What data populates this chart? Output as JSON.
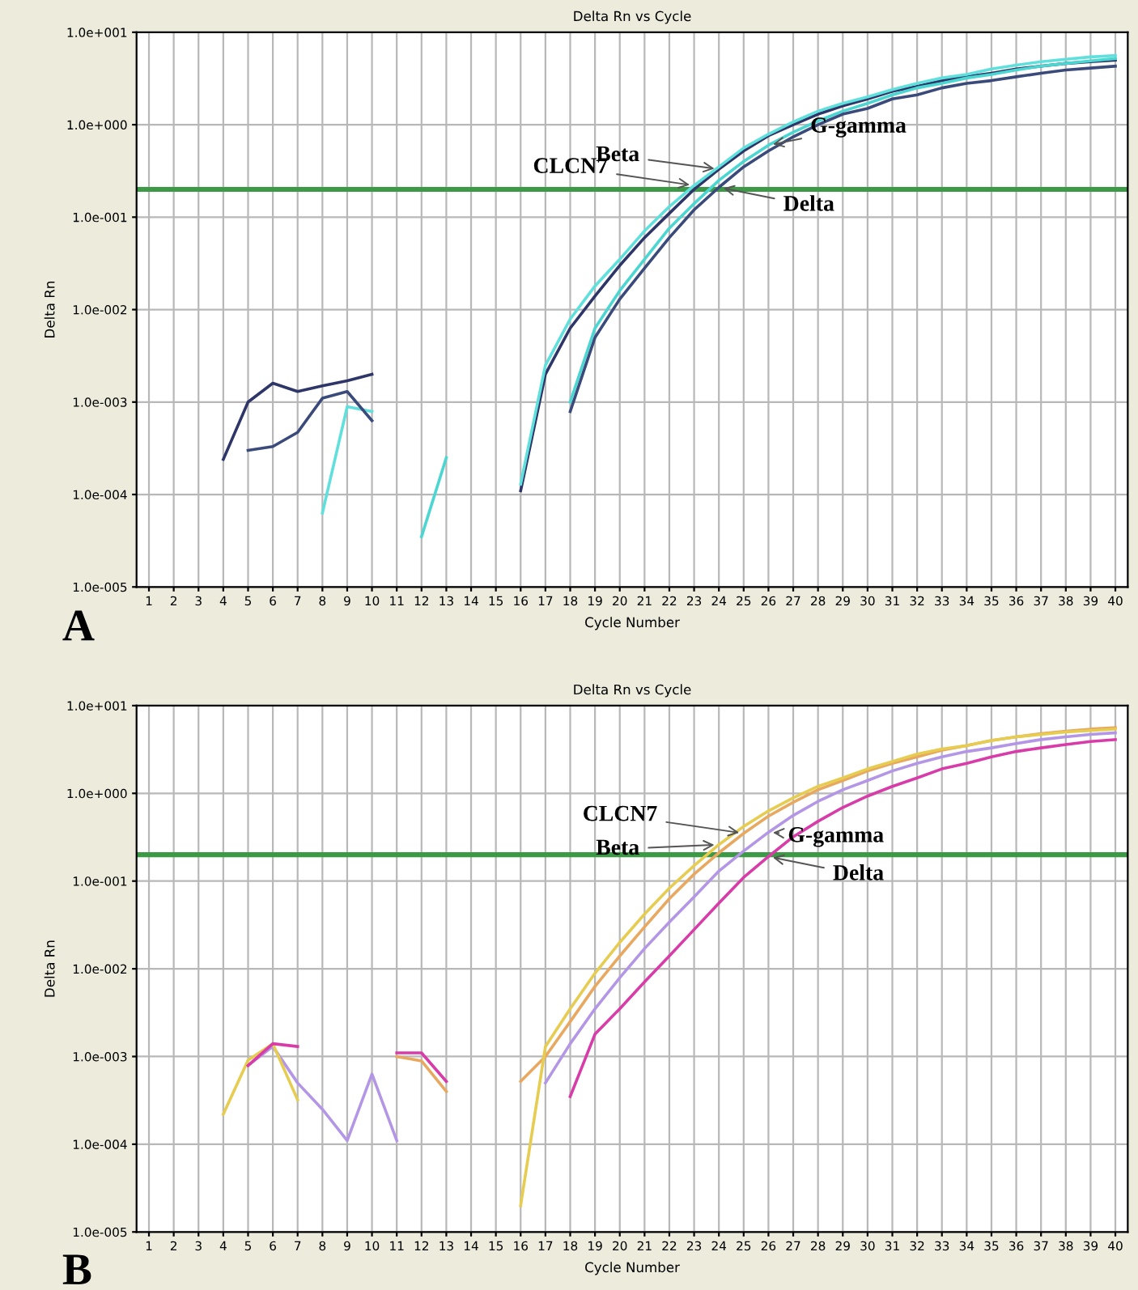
{
  "chart_data": [
    {
      "type": "line",
      "title": "Delta Rn vs Cycle",
      "xlabel": "Cycle Number",
      "ylabel": "Delta Rn",
      "log": "y",
      "grid": true,
      "legend": false,
      "marker": "none",
      "line_style": "solid",
      "annotations": [
        "A"
      ],
      "x": [
        4,
        5,
        6,
        7,
        8,
        9,
        10,
        11,
        12,
        13,
        14,
        15,
        16,
        17,
        18,
        19,
        20,
        21,
        22,
        23,
        24,
        25,
        26,
        27,
        28,
        29,
        30,
        31,
        32,
        33,
        34,
        35,
        36,
        37,
        38,
        39,
        40
      ],
      "xlim": [
        0.5,
        40.5
      ],
      "xticks": [
        1,
        2,
        3,
        4,
        5,
        6,
        7,
        8,
        9,
        10,
        11,
        12,
        13,
        14,
        15,
        16,
        17,
        18,
        19,
        20,
        21,
        22,
        23,
        24,
        25,
        26,
        27,
        28,
        29,
        30,
        31,
        32,
        33,
        34,
        35,
        36,
        37,
        38,
        39,
        40
      ],
      "ylim": [
        1e-05,
        10
      ],
      "yticks": [
        {
          "value": 1e-05,
          "label": "1.0e-005"
        },
        {
          "value": 0.0001,
          "label": "1.0e-004"
        },
        {
          "value": 0.001,
          "label": "1.0e-003"
        },
        {
          "value": 0.01,
          "label": "1.0e-002"
        },
        {
          "value": 0.1,
          "label": "1.0e-001"
        },
        {
          "value": 1,
          "label": "1.0e+000"
        },
        {
          "value": 10,
          "label": "1.0e+001"
        }
      ],
      "ref_lines": [
        {
          "axis": "y",
          "value": 0.2,
          "color": "#3c9a46"
        }
      ],
      "series": [
        {
          "name": "Beta",
          "color": "#2e3568",
          "values": [
            0.00024,
            0.001,
            0.0016,
            0.0013,
            0.0015,
            0.0017,
            0.002,
            null,
            null,
            null,
            null,
            null,
            0.00011,
            0.002,
            0.0063,
            0.014,
            0.03,
            0.06,
            0.11,
            0.2,
            0.33,
            0.52,
            0.76,
            1.0,
            1.3,
            1.6,
            1.9,
            2.3,
            2.6,
            3.0,
            3.3,
            3.6,
            4.0,
            4.3,
            4.6,
            4.8,
            5.0
          ]
        },
        {
          "name": "G-gamma",
          "color": "#4cd6d2",
          "values": [
            null,
            null,
            null,
            null,
            null,
            null,
            null,
            null,
            3.5e-05,
            0.00025,
            null,
            null,
            null,
            null,
            0.001,
            0.0063,
            0.016,
            0.035,
            0.076,
            0.14,
            0.25,
            0.4,
            0.6,
            0.83,
            1.1,
            1.4,
            1.7,
            2.1,
            2.5,
            2.8,
            3.2,
            3.5,
            3.9,
            4.3,
            4.6,
            4.9,
            5.2
          ]
        },
        {
          "name": "CLCN7",
          "color": "#5fe0dc",
          "values": [
            null,
            null,
            null,
            null,
            6.3e-05,
            0.00089,
            0.00079,
            null,
            null,
            null,
            null,
            null,
            0.00013,
            0.0025,
            0.0079,
            0.018,
            0.035,
            0.071,
            0.13,
            0.22,
            0.35,
            0.56,
            0.79,
            1.07,
            1.4,
            1.7,
            2.0,
            2.4,
            2.8,
            3.2,
            3.5,
            4.0,
            4.4,
            4.8,
            5.1,
            5.4,
            5.6
          ]
        },
        {
          "name": "Delta",
          "color": "#3a4a7a",
          "values": [
            null,
            0.0003,
            0.00033,
            0.00047,
            0.0011,
            0.0013,
            0.00063,
            null,
            null,
            null,
            null,
            null,
            null,
            null,
            0.00079,
            0.005,
            0.013,
            0.028,
            0.06,
            0.12,
            0.21,
            0.35,
            0.52,
            0.74,
            1.0,
            1.3,
            1.5,
            1.9,
            2.1,
            2.5,
            2.8,
            3.0,
            3.3,
            3.6,
            3.9,
            4.1,
            4.3
          ]
        }
      ]
    },
    {
      "type": "line",
      "title": "Delta Rn vs Cycle",
      "xlabel": "Cycle Number",
      "ylabel": "Delta Rn",
      "log": "y",
      "grid": true,
      "legend": false,
      "marker": "none",
      "line_style": "solid",
      "annotations": [
        "B"
      ],
      "x": [
        4,
        5,
        6,
        7,
        8,
        9,
        10,
        11,
        12,
        13,
        14,
        15,
        16,
        17,
        18,
        19,
        20,
        21,
        22,
        23,
        24,
        25,
        26,
        27,
        28,
        29,
        30,
        31,
        32,
        33,
        34,
        35,
        36,
        37,
        38,
        39,
        40
      ],
      "xlim": [
        0.5,
        40.5
      ],
      "xticks": [
        1,
        2,
        3,
        4,
        5,
        6,
        7,
        8,
        9,
        10,
        11,
        12,
        13,
        14,
        15,
        16,
        17,
        18,
        19,
        20,
        21,
        22,
        23,
        24,
        25,
        26,
        27,
        28,
        29,
        30,
        31,
        32,
        33,
        34,
        35,
        36,
        37,
        38,
        39,
        40
      ],
      "ylim": [
        1e-05,
        10
      ],
      "yticks": [
        {
          "value": 1e-05,
          "label": "1.0e-005"
        },
        {
          "value": 0.0001,
          "label": "1.0e-004"
        },
        {
          "value": 0.001,
          "label": "1.0e-003"
        },
        {
          "value": 0.01,
          "label": "1.0e-002"
        },
        {
          "value": 0.1,
          "label": "1.0e-001"
        },
        {
          "value": 1,
          "label": "1.0e+000"
        },
        {
          "value": 10,
          "label": "1.0e+001"
        }
      ],
      "ref_lines": [
        {
          "axis": "y",
          "value": 0.2,
          "color": "#3c9a46"
        }
      ],
      "series": [
        {
          "name": "CLCN7",
          "color": "#e8a860",
          "values": [
            null,
            null,
            null,
            null,
            null,
            null,
            null,
            0.001,
            0.00089,
            0.0004,
            null,
            null,
            0.00052,
            0.001,
            0.0025,
            0.0063,
            0.014,
            0.03,
            0.063,
            0.12,
            0.21,
            0.35,
            0.55,
            0.79,
            1.1,
            1.4,
            1.8,
            2.2,
            2.6,
            3.1,
            3.5,
            4.0,
            4.4,
            4.8,
            5.1,
            5.4,
            5.6
          ]
        },
        {
          "name": "G-gamma",
          "color": "#b496e6",
          "values": [
            null,
            0.00079,
            0.0013,
            0.0005,
            0.00025,
            0.00011,
            0.00063,
            0.00011,
            null,
            null,
            null,
            null,
            null,
            0.0005,
            0.0014,
            0.0035,
            0.0079,
            0.017,
            0.034,
            0.066,
            0.13,
            0.22,
            0.36,
            0.56,
            0.81,
            1.1,
            1.4,
            1.8,
            2.2,
            2.6,
            3.0,
            3.3,
            3.7,
            4.1,
            4.4,
            4.7,
            4.9
          ]
        },
        {
          "name": "Beta",
          "color": "#e6cc50",
          "values": [
            0.00022,
            0.00091,
            0.0014,
            0.00032,
            null,
            null,
            null,
            null,
            null,
            null,
            null,
            null,
            2e-05,
            0.0013,
            0.0035,
            0.0089,
            0.02,
            0.042,
            0.083,
            0.15,
            0.26,
            0.42,
            0.63,
            0.89,
            1.2,
            1.5,
            1.9,
            2.3,
            2.8,
            3.2,
            3.5,
            4.0,
            4.4,
            4.7,
            5.0,
            5.2,
            5.4
          ]
        },
        {
          "name": "Delta",
          "color": "#d83ca8",
          "values": [
            null,
            0.00079,
            0.0014,
            0.0013,
            null,
            null,
            null,
            0.0011,
            0.0011,
            0.00052,
            null,
            null,
            null,
            null,
            0.00035,
            0.0018,
            0.0035,
            0.0071,
            0.014,
            0.028,
            0.056,
            0.11,
            0.19,
            0.32,
            0.48,
            0.69,
            0.93,
            1.2,
            1.5,
            1.9,
            2.2,
            2.6,
            3.0,
            3.3,
            3.6,
            3.9,
            4.1
          ]
        }
      ]
    }
  ]
}
